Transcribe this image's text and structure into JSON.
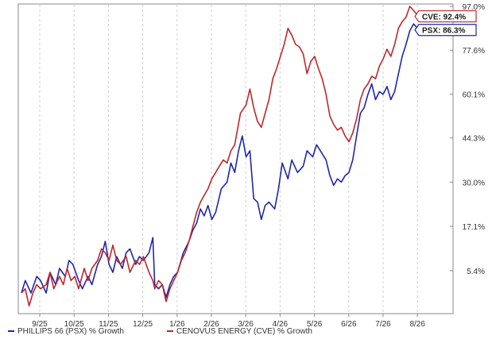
{
  "chart_data": {
    "type": "line",
    "x_unit": "month/year (2025-2026)",
    "x_ticks": [
      "9/25",
      "10/25",
      "11/25",
      "12/25",
      "1/26",
      "2/26",
      "3/26",
      "4/26",
      "5/26",
      "6/26",
      "7/26",
      "8/26"
    ],
    "y_ticks": [
      "97.0%",
      "77.6%",
      "60.1%",
      "44.3%",
      "30.0%",
      "17.1%",
      "5.4%"
    ],
    "y_tick_values": [
      97.0,
      77.6,
      60.1,
      44.3,
      30.0,
      17.1,
      5.4
    ],
    "y_scale": "log(1 + growth)",
    "grid": "vertical dashed",
    "legend_position": "bottom-left",
    "series": [
      {
        "name": "PHILLIPS 66 (PSX) % Growth",
        "color": "#1f28a8",
        "end_label": "PSX: 86.3%",
        "points": [
          [
            0.0,
            0
          ],
          [
            0.2,
            3
          ],
          [
            0.5,
            0
          ],
          [
            0.8,
            4
          ],
          [
            1.0,
            3
          ],
          [
            1.3,
            0
          ],
          [
            1.5,
            5
          ],
          [
            1.8,
            2
          ],
          [
            2.0,
            6
          ],
          [
            2.3,
            4
          ],
          [
            2.5,
            8
          ],
          [
            2.7,
            7
          ],
          [
            3.0,
            3
          ],
          [
            3.2,
            1
          ],
          [
            3.5,
            4
          ],
          [
            3.7,
            2
          ],
          [
            4.0,
            7
          ],
          [
            4.2,
            9
          ],
          [
            4.4,
            13
          ],
          [
            4.6,
            7
          ],
          [
            4.8,
            5
          ],
          [
            5.0,
            9
          ],
          [
            5.3,
            6
          ],
          [
            5.5,
            10
          ],
          [
            5.7,
            11
          ],
          [
            6.0,
            7
          ],
          [
            6.2,
            9
          ],
          [
            6.4,
            8
          ],
          [
            6.7,
            10
          ],
          [
            6.9,
            14
          ],
          [
            7.0,
            2
          ],
          [
            7.2,
            1
          ],
          [
            7.4,
            2
          ],
          [
            7.6,
            -1
          ],
          [
            7.8,
            2
          ],
          [
            8.0,
            4
          ],
          [
            8.2,
            5
          ],
          [
            8.5,
            10
          ],
          [
            8.8,
            13
          ],
          [
            9.0,
            16
          ],
          [
            9.2,
            18
          ],
          [
            9.4,
            22
          ],
          [
            9.6,
            20
          ],
          [
            9.8,
            23
          ],
          [
            10.0,
            19
          ],
          [
            10.2,
            21
          ],
          [
            10.5,
            28
          ],
          [
            10.8,
            30
          ],
          [
            11.0,
            36
          ],
          [
            11.2,
            33
          ],
          [
            11.4,
            40
          ],
          [
            11.6,
            45
          ],
          [
            11.8,
            38
          ],
          [
            12.0,
            40
          ],
          [
            12.2,
            25
          ],
          [
            12.4,
            24
          ],
          [
            12.6,
            19
          ],
          [
            12.8,
            23
          ],
          [
            13.0,
            24
          ],
          [
            13.3,
            22
          ],
          [
            13.5,
            28
          ],
          [
            13.7,
            36
          ],
          [
            14.0,
            31
          ],
          [
            14.2,
            37
          ],
          [
            14.5,
            33
          ],
          [
            14.8,
            35
          ],
          [
            15.0,
            40
          ],
          [
            15.3,
            38
          ],
          [
            15.5,
            42
          ],
          [
            15.7,
            40
          ],
          [
            16.0,
            37
          ],
          [
            16.2,
            32
          ],
          [
            16.4,
            29
          ],
          [
            16.6,
            31
          ],
          [
            16.8,
            30
          ],
          [
            17.0,
            32
          ],
          [
            17.2,
            33
          ],
          [
            17.4,
            37
          ],
          [
            17.6,
            45
          ],
          [
            17.8,
            53
          ],
          [
            18.0,
            55
          ],
          [
            18.2,
            60
          ],
          [
            18.4,
            64
          ],
          [
            18.6,
            58
          ],
          [
            18.8,
            61
          ],
          [
            19.0,
            60
          ],
          [
            19.2,
            63
          ],
          [
            19.4,
            58
          ],
          [
            19.6,
            61
          ],
          [
            19.8,
            68
          ],
          [
            20.0,
            75
          ],
          [
            20.2,
            80
          ],
          [
            20.4,
            86
          ],
          [
            20.6,
            89
          ],
          [
            20.8,
            87
          ],
          [
            21.0,
            86.3
          ]
        ]
      },
      {
        "name": "CENOVUS ENERGY (CVE) % Growth",
        "color": "#c0272d",
        "end_label": "CVE: 92.4%",
        "points": [
          [
            0.0,
            0
          ],
          [
            0.2,
            1
          ],
          [
            0.4,
            -3
          ],
          [
            0.6,
            0
          ],
          [
            0.8,
            2
          ],
          [
            1.0,
            1
          ],
          [
            1.3,
            2
          ],
          [
            1.5,
            5
          ],
          [
            1.7,
            1
          ],
          [
            2.0,
            4
          ],
          [
            2.2,
            2
          ],
          [
            2.4,
            6
          ],
          [
            2.6,
            3
          ],
          [
            2.8,
            4
          ],
          [
            3.0,
            1
          ],
          [
            3.3,
            6
          ],
          [
            3.5,
            3
          ],
          [
            3.7,
            6
          ],
          [
            4.0,
            8
          ],
          [
            4.2,
            11
          ],
          [
            4.4,
            10
          ],
          [
            4.6,
            8
          ],
          [
            4.8,
            12
          ],
          [
            5.0,
            8
          ],
          [
            5.2,
            7
          ],
          [
            5.5,
            9
          ],
          [
            5.7,
            5
          ],
          [
            6.0,
            8
          ],
          [
            6.2,
            7
          ],
          [
            6.4,
            9
          ],
          [
            6.7,
            5
          ],
          [
            6.9,
            3
          ],
          [
            7.0,
            1
          ],
          [
            7.2,
            3
          ],
          [
            7.4,
            2
          ],
          [
            7.6,
            -2
          ],
          [
            7.8,
            1
          ],
          [
            8.0,
            3
          ],
          [
            8.2,
            5
          ],
          [
            8.4,
            8
          ],
          [
            8.6,
            10
          ],
          [
            8.8,
            13
          ],
          [
            9.0,
            17
          ],
          [
            9.2,
            21
          ],
          [
            9.4,
            24
          ],
          [
            9.6,
            26
          ],
          [
            9.8,
            28
          ],
          [
            10.0,
            31
          ],
          [
            10.2,
            33
          ],
          [
            10.4,
            35
          ],
          [
            10.6,
            37
          ],
          [
            10.8,
            36
          ],
          [
            11.0,
            40
          ],
          [
            11.2,
            42
          ],
          [
            11.5,
            53
          ],
          [
            11.8,
            56
          ],
          [
            12.0,
            62
          ],
          [
            12.2,
            55
          ],
          [
            12.4,
            50
          ],
          [
            12.6,
            48
          ],
          [
            12.8,
            53
          ],
          [
            13.0,
            58
          ],
          [
            13.2,
            66
          ],
          [
            13.4,
            70
          ],
          [
            13.6,
            75
          ],
          [
            13.8,
            80
          ],
          [
            14.0,
            87
          ],
          [
            14.2,
            84
          ],
          [
            14.4,
            80
          ],
          [
            14.6,
            79
          ],
          [
            14.8,
            76
          ],
          [
            15.0,
            68
          ],
          [
            15.2,
            73
          ],
          [
            15.4,
            75
          ],
          [
            15.6,
            70
          ],
          [
            15.8,
            66
          ],
          [
            16.0,
            60
          ],
          [
            16.2,
            52
          ],
          [
            16.4,
            49
          ],
          [
            16.6,
            47
          ],
          [
            16.8,
            48
          ],
          [
            17.0,
            45
          ],
          [
            17.2,
            43
          ],
          [
            17.4,
            46
          ],
          [
            17.6,
            51
          ],
          [
            17.8,
            58
          ],
          [
            18.0,
            62
          ],
          [
            18.2,
            64
          ],
          [
            18.4,
            67
          ],
          [
            18.6,
            66
          ],
          [
            18.8,
            71
          ],
          [
            19.0,
            74
          ],
          [
            19.2,
            78
          ],
          [
            19.4,
            75
          ],
          [
            19.6,
            80
          ],
          [
            19.8,
            87
          ],
          [
            20.0,
            90
          ],
          [
            20.2,
            92
          ],
          [
            20.4,
            97
          ],
          [
            20.6,
            95
          ],
          [
            20.8,
            93
          ],
          [
            21.0,
            92.4
          ]
        ]
      }
    ]
  }
}
